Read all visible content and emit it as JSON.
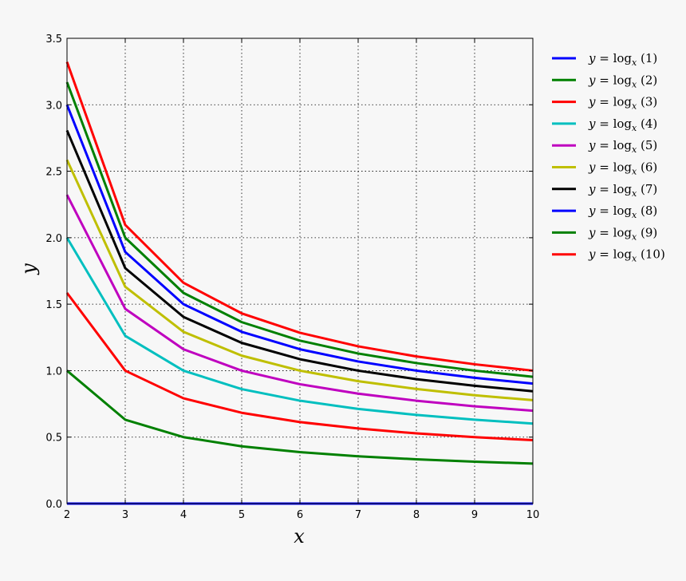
{
  "chart_data": {
    "type": "line",
    "xlabel": "x",
    "ylabel": "y",
    "xlim": [
      2,
      10
    ],
    "ylim": [
      0,
      3.5
    ],
    "x_ticks": [
      "2",
      "3",
      "4",
      "5",
      "6",
      "7",
      "8",
      "9",
      "10"
    ],
    "y_ticks": [
      "0.0",
      "0.5",
      "1.0",
      "1.5",
      "2.0",
      "2.5",
      "3.0",
      "3.5"
    ],
    "grid": true,
    "legend_position": "outside-right",
    "x": [
      2,
      3,
      4,
      5,
      6,
      7,
      8,
      9,
      10
    ],
    "series": [
      {
        "name": "y = log_x (1)",
        "arg": "1",
        "color": "#0000ff",
        "values": [
          0,
          0,
          0,
          0,
          0,
          0,
          0,
          0,
          0
        ]
      },
      {
        "name": "y = log_x (2)",
        "arg": "2",
        "color": "#008000",
        "values": [
          1.0,
          0.631,
          0.5,
          0.431,
          0.387,
          0.356,
          0.333,
          0.315,
          0.301
        ]
      },
      {
        "name": "y = log_x (3)",
        "arg": "3",
        "color": "#ff0000",
        "values": [
          1.585,
          1.0,
          0.792,
          0.683,
          0.613,
          0.565,
          0.528,
          0.5,
          0.477
        ]
      },
      {
        "name": "y = log_x (4)",
        "arg": "4",
        "color": "#00bfbf",
        "values": [
          2.0,
          1.262,
          1.0,
          0.861,
          0.774,
          0.712,
          0.667,
          0.631,
          0.602
        ]
      },
      {
        "name": "y = log_x (5)",
        "arg": "5",
        "color": "#bf00bf",
        "values": [
          2.322,
          1.465,
          1.161,
          1.0,
          0.898,
          0.827,
          0.774,
          0.732,
          0.699
        ]
      },
      {
        "name": "y = log_x (6)",
        "arg": "6",
        "color": "#bfbf00",
        "values": [
          2.585,
          1.631,
          1.292,
          1.113,
          1.0,
          0.921,
          0.862,
          0.815,
          0.778
        ]
      },
      {
        "name": "y = log_x (7)",
        "arg": "7",
        "color": "#000000",
        "values": [
          2.807,
          1.771,
          1.404,
          1.209,
          1.086,
          1.0,
          0.936,
          0.886,
          0.845
        ]
      },
      {
        "name": "y = log_x (8)",
        "arg": "8",
        "color": "#0000ff",
        "values": [
          3.0,
          1.893,
          1.5,
          1.292,
          1.161,
          1.069,
          1.0,
          0.946,
          0.903
        ]
      },
      {
        "name": "y = log_x (9)",
        "arg": "9",
        "color": "#008000",
        "values": [
          3.17,
          2.0,
          1.585,
          1.365,
          1.226,
          1.129,
          1.057,
          1.0,
          0.954
        ]
      },
      {
        "name": "y = log_x (10)",
        "arg": "10",
        "color": "#ff0000",
        "values": [
          3.322,
          2.096,
          1.661,
          1.431,
          1.285,
          1.183,
          1.107,
          1.048,
          1.0
        ]
      }
    ]
  }
}
